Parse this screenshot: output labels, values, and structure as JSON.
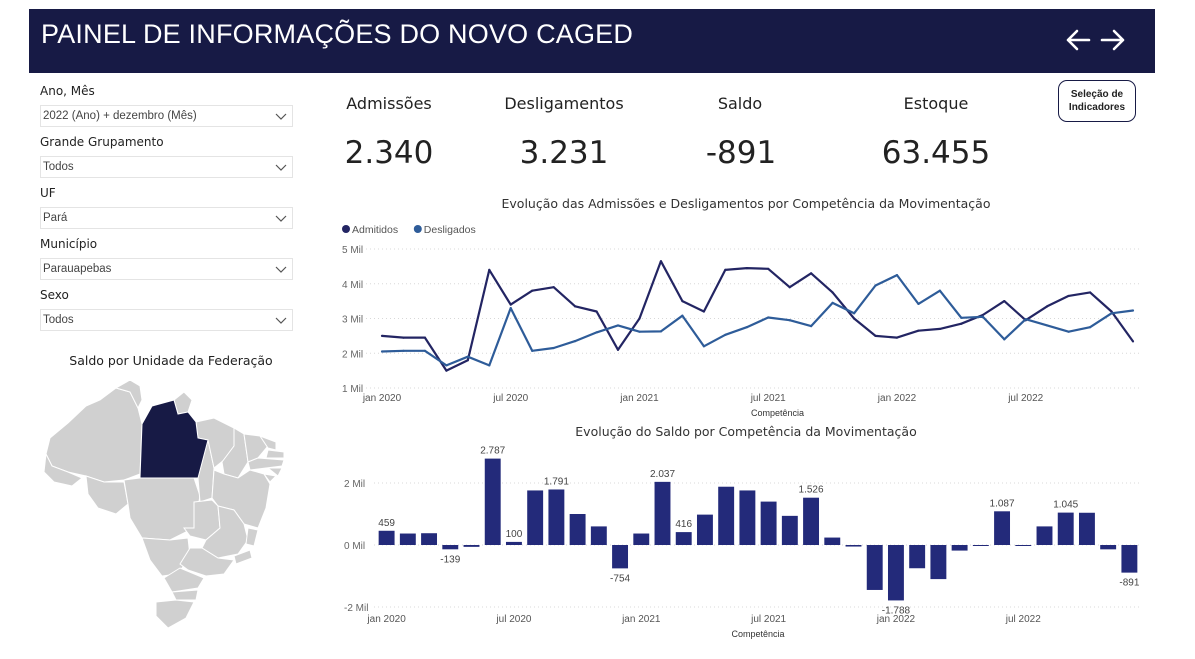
{
  "header": {
    "title": "PAINEL DE INFORMAÇÕES DO NOVO CAGED",
    "back_icon": "arrow-left-icon",
    "forward_icon": "arrow-right-icon"
  },
  "filters": [
    {
      "label": "Ano, Mês",
      "value": "2022 (Ano) + dezembro (Mês)"
    },
    {
      "label": "Grande Grupamento",
      "value": "Todos"
    },
    {
      "label": "UF",
      "value": "Pará"
    },
    {
      "label": "Município",
      "value": "Parauapebas"
    },
    {
      "label": "Sexo",
      "value": "Todos"
    }
  ],
  "map": {
    "title": "Saldo por Unidade da Federação",
    "highlight_color": "#171a45",
    "base_color": "#d0d0d0"
  },
  "kpis": [
    {
      "label": "Admissões",
      "value": "2.340"
    },
    {
      "label": "Desligamentos",
      "value": "3.231"
    },
    {
      "label": "Saldo",
      "value": "-891"
    },
    {
      "label": "Estoque",
      "value": "63.455"
    }
  ],
  "selection_button": {
    "line1": "Seleção de",
    "line2": "Indicadores"
  },
  "colors": {
    "admitidos": "#232563",
    "desligados": "#2e5c99",
    "saldo_bar": "#232a7a",
    "header": "#171a45"
  },
  "chart_data": [
    {
      "type": "line",
      "title": "Evolução das Admissões e Desligamentos por Competência da Movimentação",
      "xlabel": "Competência",
      "ylabel": "",
      "ylim": [
        1000,
        5000
      ],
      "y_ticks": [
        "5 Mil",
        "4 Mil",
        "3 Mil",
        "2 Mil",
        "1 Mil"
      ],
      "y_tick_values": [
        5000,
        4000,
        3000,
        2000,
        1000
      ],
      "x_ticks": [
        "jan 2020",
        "jul 2020",
        "jan 2021",
        "jul 2021",
        "jan 2022",
        "jul 2022"
      ],
      "x_tick_index": [
        0,
        6,
        12,
        18,
        24,
        30
      ],
      "legend": "top-left",
      "grid": true,
      "series": [
        {
          "name": "Admitidos",
          "values": [
            2500,
            2450,
            2450,
            1500,
            1800,
            4400,
            3400,
            3800,
            3900,
            3350,
            3200,
            2100,
            3000,
            4650,
            3500,
            3200,
            4400,
            4450,
            4430,
            3900,
            4300,
            3750,
            3000,
            2500,
            2450,
            2650,
            2700,
            2850,
            3100,
            3500,
            2950,
            3350,
            3650,
            3750,
            3200,
            2340
          ]
        },
        {
          "name": "Desligados",
          "values": [
            2050,
            2070,
            2070,
            1650,
            1900,
            1650,
            3300,
            2070,
            2150,
            2350,
            2600,
            2800,
            2620,
            2630,
            3080,
            2200,
            2530,
            2750,
            3030,
            2950,
            2780,
            3450,
            3150,
            3950,
            4250,
            3420,
            3800,
            3020,
            3050,
            2400,
            2980,
            2800,
            2620,
            2750,
            3150,
            3231
          ]
        }
      ]
    },
    {
      "type": "bar",
      "title": "Evolução do Saldo por Competência da Movimentação",
      "xlabel": "Competência",
      "ylabel": "",
      "ylim": [
        -2000,
        3000
      ],
      "y_ticks": [
        "2 Mil",
        "0 Mil",
        "-2 Mil"
      ],
      "y_tick_values": [
        2000,
        0,
        -2000
      ],
      "x_ticks": [
        "jan 2020",
        "jul 2020",
        "jan 2021",
        "jul 2021",
        "jan 2022",
        "jul 2022"
      ],
      "x_tick_index": [
        0,
        6,
        12,
        18,
        24,
        30
      ],
      "grid": true,
      "values": [
        459,
        370,
        380,
        -139,
        -60,
        2787,
        100,
        1760,
        1791,
        1000,
        600,
        -754,
        370,
        2037,
        416,
        980,
        1880,
        1760,
        1400,
        940,
        1526,
        240,
        -50,
        -1450,
        -1788,
        -750,
        -1100,
        -180,
        -30,
        1087,
        -30,
        600,
        1045,
        1040,
        -140,
        -891
      ],
      "data_labels": {
        "0": "459",
        "3": "-139",
        "5": "2.787",
        "6": "100",
        "8": "1.791",
        "11": "-754",
        "13": "2.037",
        "14": "416",
        "20": "1.526",
        "24": "-1.788",
        "29": "1.087",
        "32": "1.045",
        "35": "-891"
      }
    }
  ]
}
